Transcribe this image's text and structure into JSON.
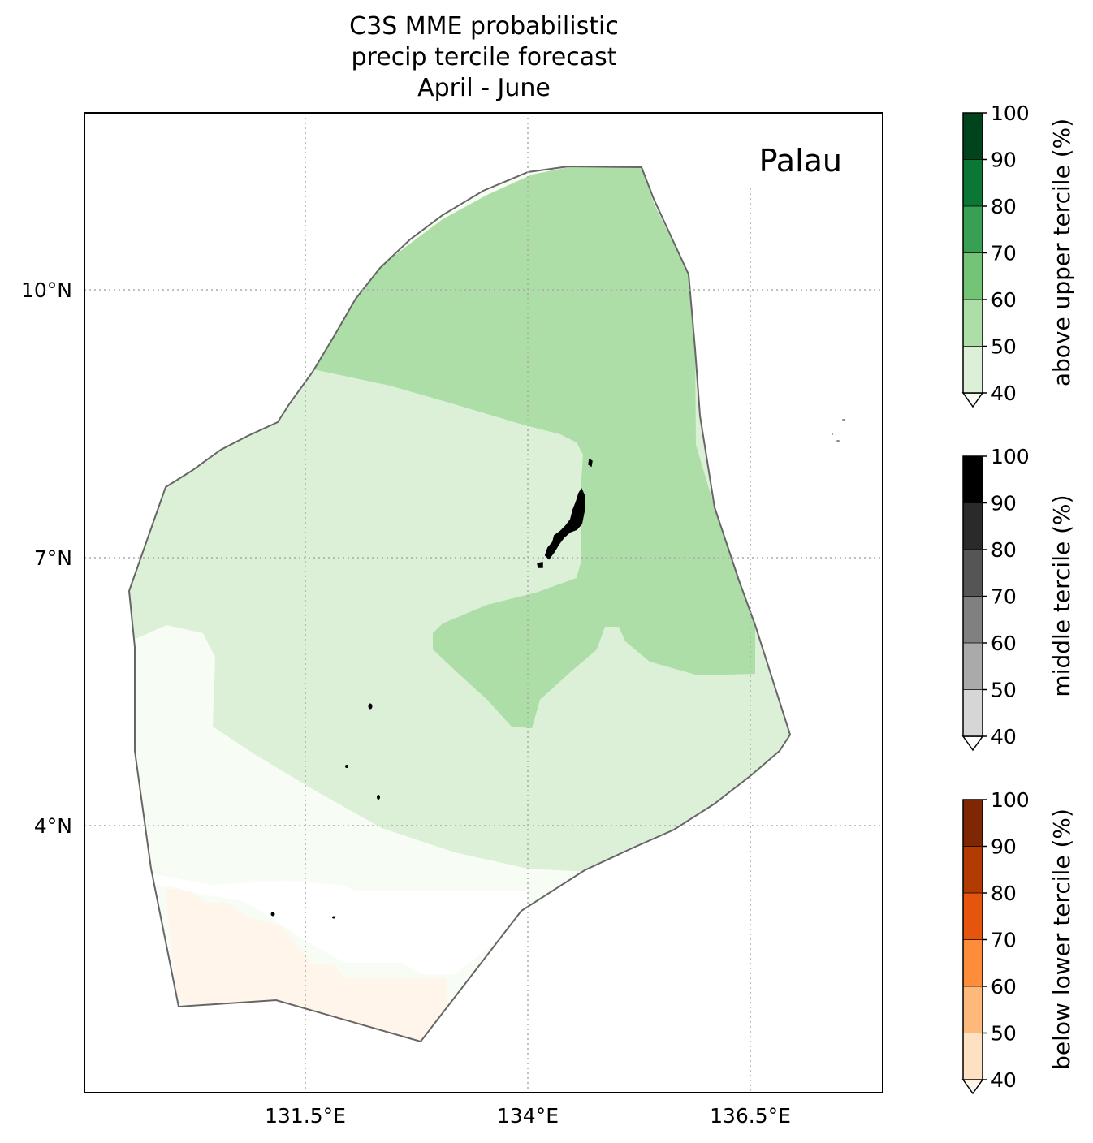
{
  "title_lines": [
    "C3S MME probabilistic",
    "precip tercile forecast",
    "April - June"
  ],
  "map": {
    "region_label": "Palau",
    "lat_ticks": [
      "10°N",
      "7°N",
      "4°N"
    ],
    "lon_ticks": [
      "131.5°E",
      "134°E",
      "136.5°E"
    ]
  },
  "colorbars": [
    {
      "label": "above upper tercile (%)",
      "ticks": [
        "40",
        "50",
        "60",
        "70",
        "80",
        "90",
        "100"
      ],
      "colors": [
        "#dbf0d6",
        "#addea7",
        "#74c477",
        "#37a055",
        "#0b7734",
        "#00441b"
      ],
      "extend_color": "#f7fcf5"
    },
    {
      "label": "middle tercile (%)",
      "ticks": [
        "40",
        "50",
        "60",
        "70",
        "80",
        "90",
        "100"
      ],
      "colors": [
        "#d6d6d6",
        "#aaaaaa",
        "#808080",
        "#555555",
        "#2a2a2a",
        "#000000"
      ],
      "extend_color": "#ffffff"
    },
    {
      "label": "below lower tercile (%)",
      "ticks": [
        "40",
        "50",
        "60",
        "70",
        "80",
        "90",
        "100"
      ],
      "colors": [
        "#fee1c2",
        "#fdb87a",
        "#fd8c3b",
        "#e5550d",
        "#b23b02",
        "#7f2704"
      ],
      "extend_color": "#fff5eb"
    }
  ]
}
